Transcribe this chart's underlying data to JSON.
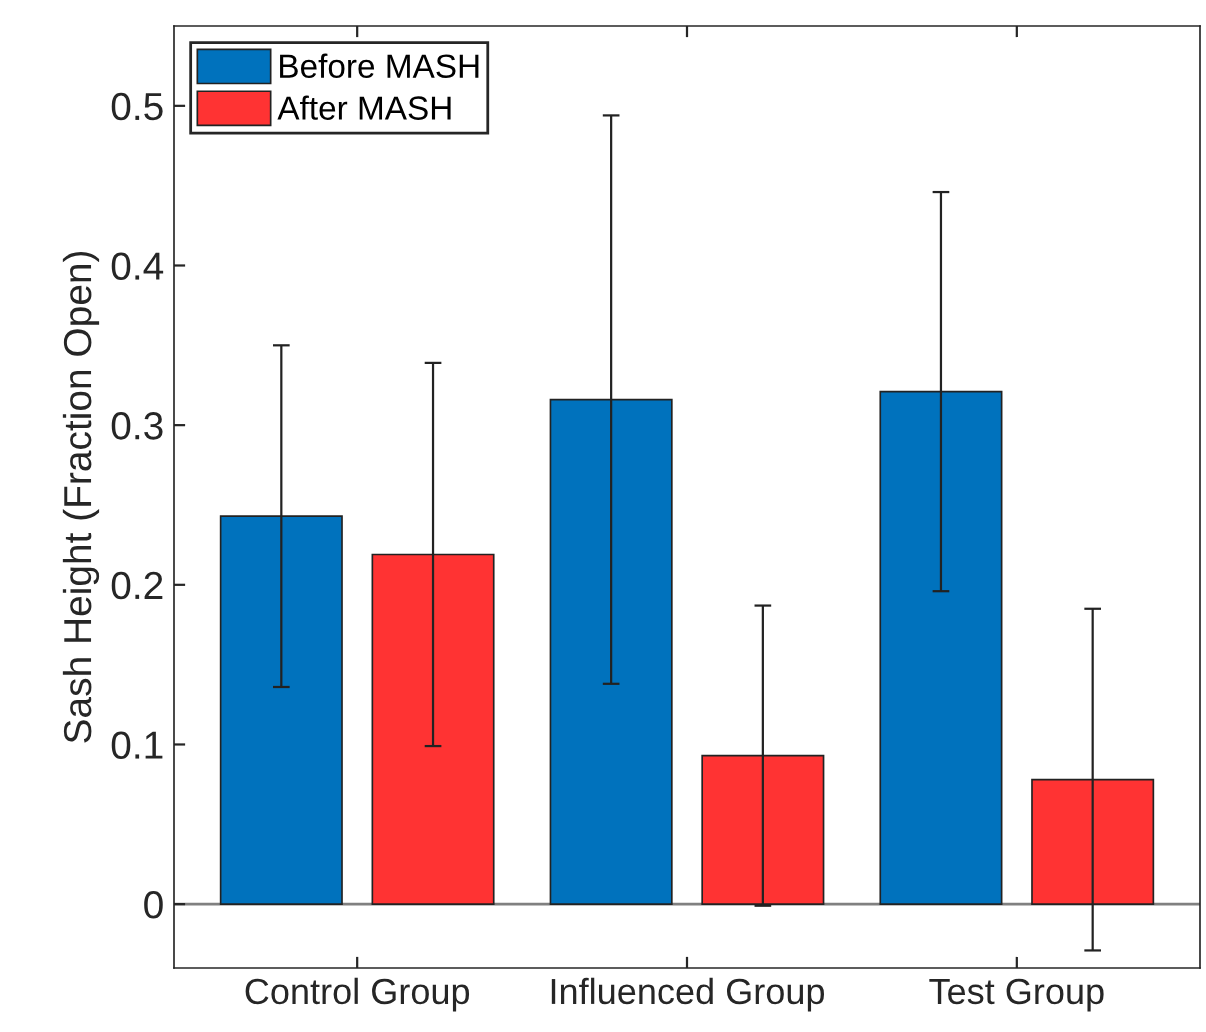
{
  "chart_data": {
    "type": "bar",
    "ylabel": "Sash Height (Fraction Open)",
    "categories": [
      "Control Group",
      "Influenced Group",
      "Test Group"
    ],
    "series": [
      {
        "name": "Before MASH",
        "color": "#0072bd",
        "values": [
          0.243,
          0.316,
          0.321
        ],
        "errors": [
          0.107,
          0.178,
          0.125
        ]
      },
      {
        "name": "After MASH",
        "color": "#ff3333",
        "values": [
          0.219,
          0.093,
          0.078
        ],
        "errors": [
          0.12,
          0.094,
          0.107
        ]
      }
    ],
    "ylim": [
      -0.04,
      0.55
    ],
    "yticks": [
      0,
      0.1,
      0.2,
      0.3,
      0.4,
      0.5
    ],
    "ref_lines": [
      {
        "axis": "y",
        "value": 0,
        "color": "#808080"
      }
    ],
    "grid": false,
    "legend": "top left"
  }
}
